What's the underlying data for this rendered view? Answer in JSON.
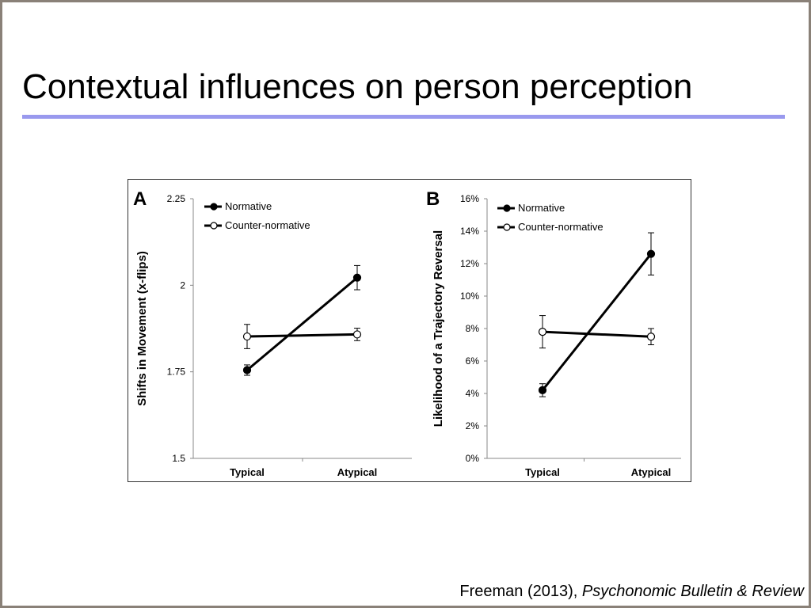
{
  "slide": {
    "title": "Contextual influences on person perception",
    "citation_prefix": "Freeman (2013), ",
    "citation_journal": "Psychonomic Bulletin & Review"
  },
  "chart_data": [
    {
      "panel": "A",
      "type": "line",
      "categories": [
        "Typical",
        "Atypical"
      ],
      "ylabel": "Shifts in Movement (x-flips)",
      "ylim": [
        1.5,
        2.25
      ],
      "yticks": [
        1.5,
        1.75,
        2,
        2.25
      ],
      "ytick_labels": [
        "1.5",
        "1.75",
        "2",
        "2.25"
      ],
      "legend_position": "top-left",
      "series": [
        {
          "name": "Normative",
          "marker": "filled",
          "values": [
            1.755,
            2.022
          ],
          "errors": [
            0.015,
            0.035
          ]
        },
        {
          "name": "Counter-normative",
          "marker": "open",
          "values": [
            1.852,
            1.858
          ],
          "errors": [
            0.035,
            0.018
          ]
        }
      ]
    },
    {
      "panel": "B",
      "type": "line",
      "categories": [
        "Typical",
        "Atypical"
      ],
      "ylabel": "Likelihood of a Trajectory Reversal",
      "ylim": [
        0,
        16
      ],
      "yticks": [
        0,
        2,
        4,
        6,
        8,
        10,
        12,
        14,
        16
      ],
      "ytick_labels": [
        "0%",
        "2%",
        "4%",
        "6%",
        "8%",
        "10%",
        "12%",
        "14%",
        "16%"
      ],
      "legend_position": "top-left",
      "series": [
        {
          "name": "Normative",
          "marker": "filled",
          "values": [
            4.2,
            12.6
          ],
          "errors": [
            0.4,
            1.3
          ]
        },
        {
          "name": "Counter-normative",
          "marker": "open",
          "values": [
            7.8,
            7.5
          ],
          "errors": [
            1.0,
            0.5
          ]
        }
      ]
    }
  ]
}
